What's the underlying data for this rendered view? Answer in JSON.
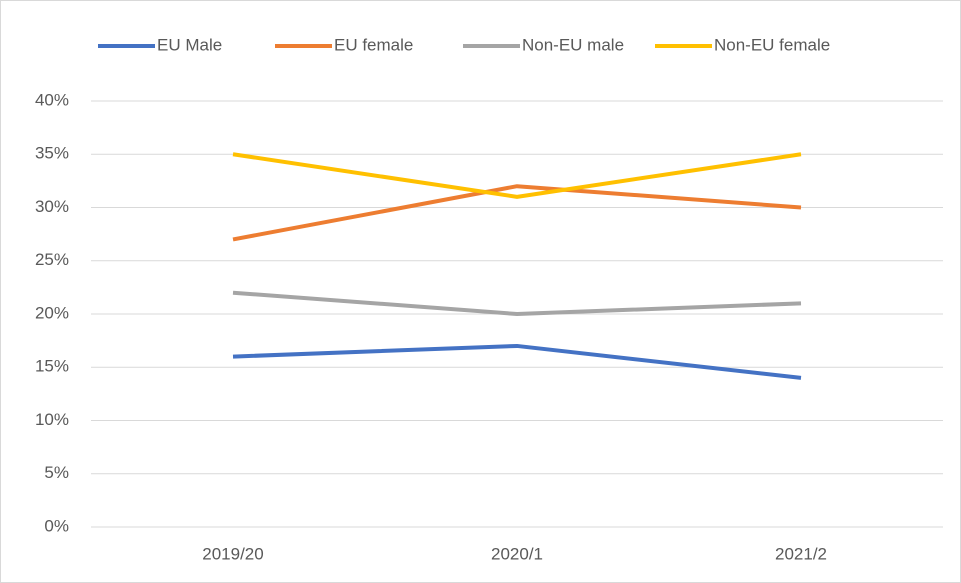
{
  "chart_data": {
    "type": "line",
    "categories": [
      "2019/20",
      "2020/1",
      "2021/2"
    ],
    "series": [
      {
        "name": "EU Male",
        "color": "#4472c4",
        "values": [
          16,
          17,
          14
        ]
      },
      {
        "name": "EU female",
        "color": "#ed7d31",
        "values": [
          27,
          32,
          30
        ]
      },
      {
        "name": "Non-EU male",
        "color": "#a5a5a5",
        "values": [
          22,
          20,
          21
        ]
      },
      {
        "name": "Non-EU female",
        "color": "#ffc000",
        "values": [
          35,
          31,
          35
        ]
      }
    ],
    "ylim": [
      0,
      40
    ],
    "yticks": [
      {
        "value": 0,
        "label": "0%"
      },
      {
        "value": 5,
        "label": "5%"
      },
      {
        "value": 10,
        "label": "10%"
      },
      {
        "value": 15,
        "label": "15%"
      },
      {
        "value": 20,
        "label": "20%"
      },
      {
        "value": 25,
        "label": "25%"
      },
      {
        "value": 30,
        "label": "30%"
      },
      {
        "value": 35,
        "label": "35%"
      },
      {
        "value": 40,
        "label": "40%"
      }
    ],
    "grid": true,
    "legend": "top"
  }
}
